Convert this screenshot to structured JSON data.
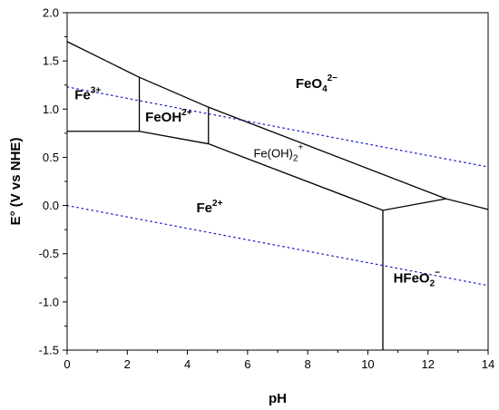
{
  "chart_data": {
    "type": "line",
    "title": "",
    "xlabel": "pH",
    "ylabel": "E° (V vs NHE)",
    "xlim": [
      0,
      14
    ],
    "ylim": [
      -1.5,
      2.0
    ],
    "x_ticks": [
      0,
      2,
      4,
      6,
      8,
      10,
      12,
      14
    ],
    "y_ticks": [
      -1.5,
      -1.0,
      -0.5,
      0.0,
      0.5,
      1.0,
      1.5,
      2.0
    ],
    "x_tick_labels": [
      "0",
      "2",
      "4",
      "6",
      "8",
      "10",
      "12",
      "14"
    ],
    "y_tick_labels": [
      "-1.5",
      "-1.0",
      "-0.5",
      "0.0",
      "0.5",
      "1.0",
      "1.5",
      "2.0"
    ],
    "grid": false,
    "boundaries": [
      {
        "x": [
          0,
          2.4,
          4.7,
          12.6,
          14
        ],
        "y": [
          1.7,
          1.33,
          1.02,
          0.07,
          -0.04
        ]
      },
      {
        "x": [
          0,
          2.4,
          4.7,
          10.5,
          12.6
        ],
        "y": [
          0.77,
          0.77,
          0.64,
          -0.05,
          0.07
        ]
      },
      {
        "x": [
          2.4,
          2.4
        ],
        "y": [
          0.77,
          1.33
        ]
      },
      {
        "x": [
          4.7,
          4.7
        ],
        "y": [
          0.64,
          1.02
        ]
      },
      {
        "x": [
          10.5,
          10.5
        ],
        "y": [
          -0.05,
          -1.5
        ]
      }
    ],
    "water_lines": [
      {
        "x": [
          0,
          14
        ],
        "y": [
          1.23,
          0.4
        ]
      },
      {
        "x": [
          0,
          14
        ],
        "y": [
          0.0,
          -0.83
        ]
      }
    ],
    "region_labels": [
      {
        "base": "Fe",
        "sup": "3+",
        "sub": "",
        "sup2": "",
        "x": 0.25,
        "y": 1.1,
        "style": "bold"
      },
      {
        "base": "FeOH",
        "sup": "2+",
        "sub": "",
        "sup2": "",
        "x": 2.6,
        "y": 0.87,
        "style": "bold"
      },
      {
        "base": "Fe(OH)",
        "sup": "",
        "sub": "2",
        "sup2": "+",
        "x": 6.2,
        "y": 0.5,
        "style": "normal"
      },
      {
        "base": "FeO",
        "sup": "",
        "sub": "4",
        "sup2": "2−",
        "x": 7.6,
        "y": 1.22,
        "style": "bold"
      },
      {
        "base": "Fe",
        "sup": "2+",
        "sub": "",
        "sup2": "",
        "x": 4.3,
        "y": -0.07,
        "style": "bold"
      },
      {
        "base": "HFeO",
        "sup": "",
        "sub": "2",
        "sup2": "−",
        "x": 10.85,
        "y": -0.8,
        "style": "bold"
      }
    ]
  }
}
